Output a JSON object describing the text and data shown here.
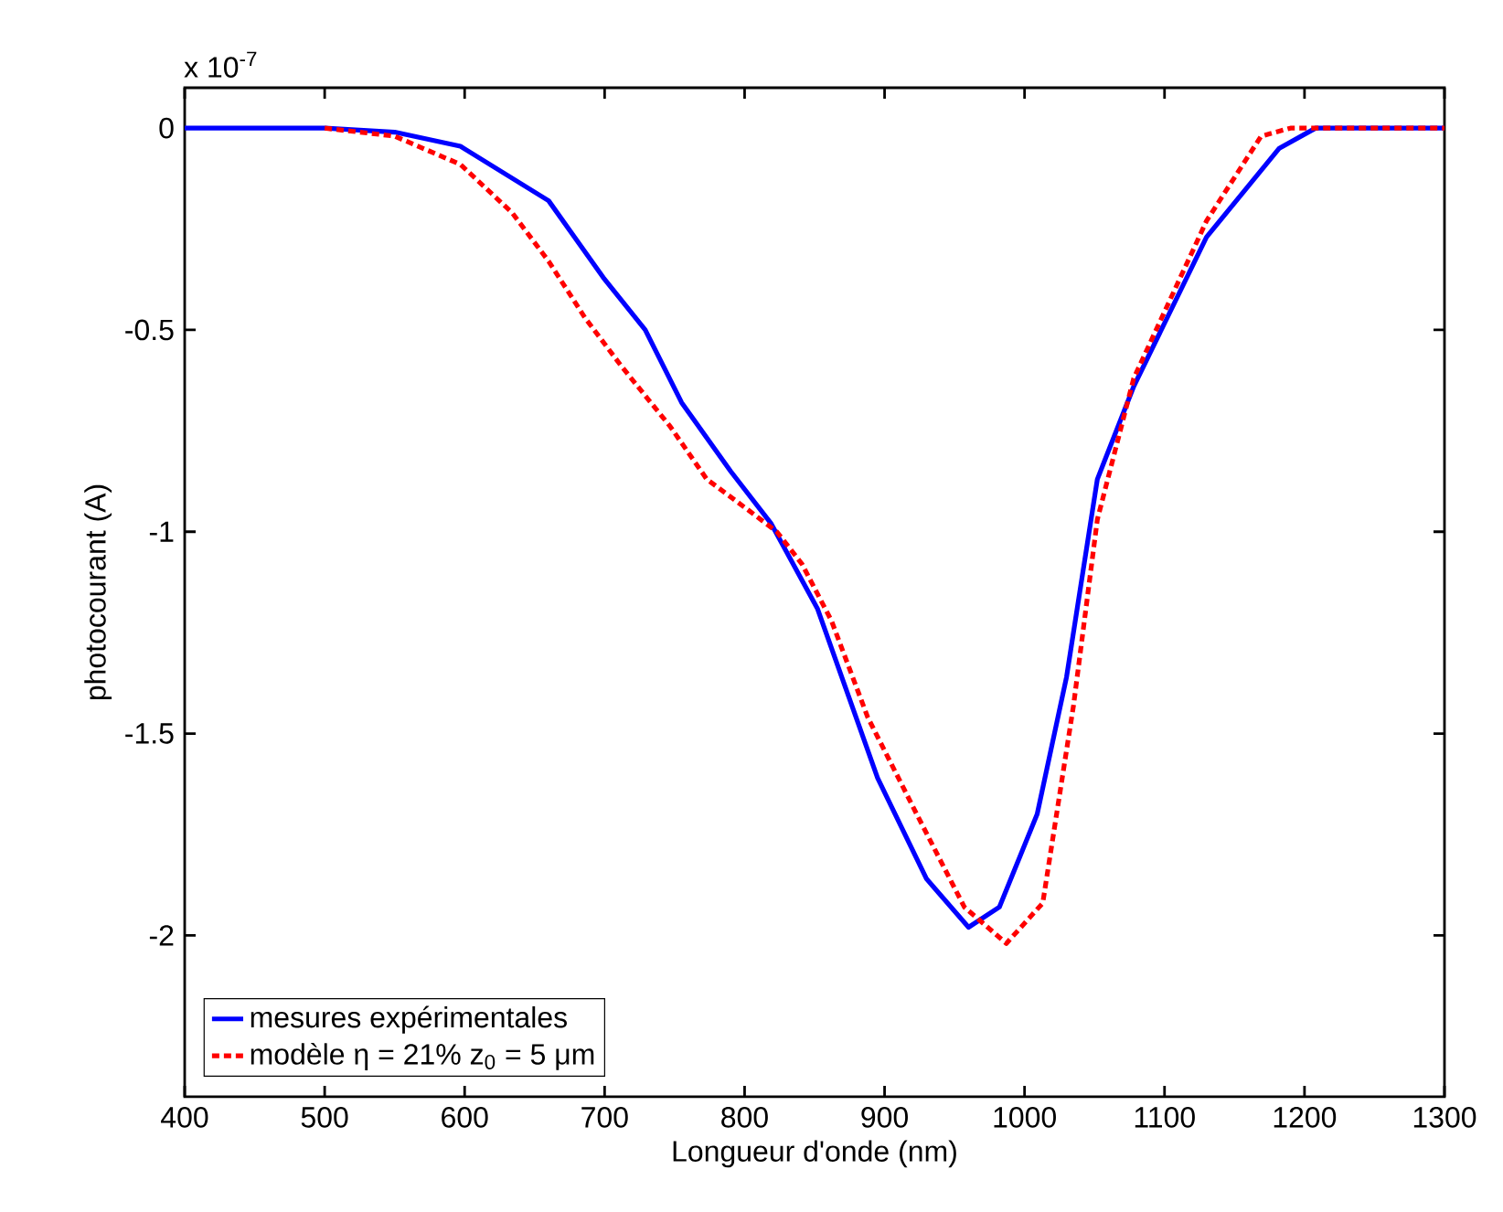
{
  "chart_data": {
    "type": "line",
    "xlabel": "Longueur d'onde (nm)",
    "ylabel": "photocourant (A)",
    "annotations": [
      "x 10$^{-7}$"
    ],
    "xlim": [
      400,
      1300
    ],
    "xticks": [
      400,
      500,
      600,
      700,
      800,
      900,
      1000,
      1100,
      1200,
      1300
    ],
    "ylim": [
      -2.4,
      0.1
    ],
    "yticks": [
      -2,
      -1.5,
      -1,
      -0.5,
      0
    ],
    "grid": false,
    "legend": "bottom left",
    "marker": "none",
    "series": [
      {
        "name": "mesures expérimentales",
        "color": "#0000ff",
        "line_style": "solid",
        "x": [
          400,
          450,
          500,
          550,
          597,
          660,
          699,
          729,
          755,
          790,
          819,
          852,
          895,
          930,
          960,
          982,
          1009,
          1030,
          1052,
          1078,
          1130,
          1182,
          1208,
          1250,
          1300
        ],
        "values": [
          0,
          0,
          0,
          -0.01,
          -0.045,
          -0.18,
          -0.37,
          -0.5,
          -0.68,
          -0.85,
          -0.98,
          -1.19,
          -1.61,
          -1.86,
          -1.98,
          -1.93,
          -1.7,
          -1.36,
          -0.87,
          -0.64,
          -0.27,
          -0.05,
          0,
          0,
          0
        ]
      },
      {
        "name": "modèle η = 21% z$_{0}$ = 5 μm",
        "color": "#ff0000",
        "line_style": "dotted",
        "x": [
          500,
          550,
          597,
          634,
          660,
          686,
          712,
          747,
          773,
          804,
          823,
          841,
          862,
          888,
          923,
          957,
          987,
          1013,
          1035,
          1052,
          1078,
          1130,
          1169,
          1190,
          1250,
          1300
        ],
        "values": [
          0,
          -0.02,
          -0.09,
          -0.21,
          -0.33,
          -0.47,
          -0.59,
          -0.74,
          -0.87,
          -0.95,
          -1.0,
          -1.08,
          -1.22,
          -1.46,
          -1.7,
          -1.93,
          -2.02,
          -1.92,
          -1.43,
          -0.97,
          -0.62,
          -0.23,
          -0.02,
          0,
          0,
          0
        ]
      }
    ]
  }
}
